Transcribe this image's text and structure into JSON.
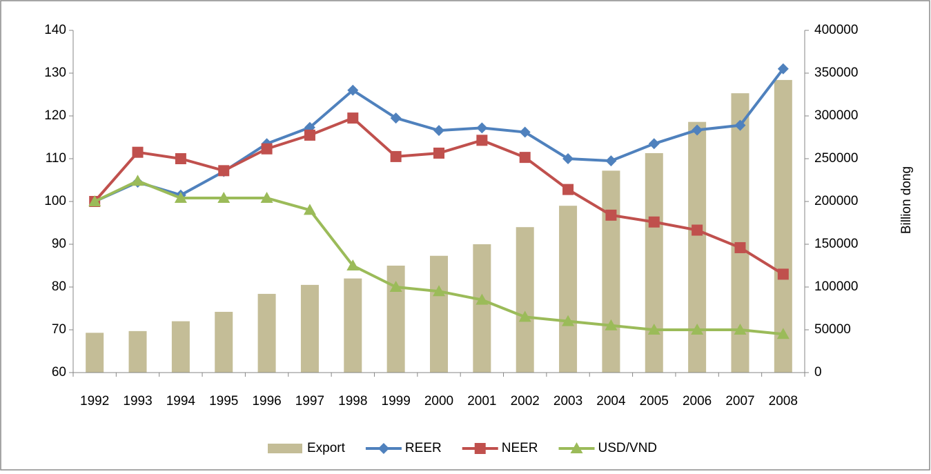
{
  "chart_data": {
    "type": "bar-line",
    "y2_label": "Billion dong",
    "categories": [
      "1992",
      "1993",
      "1994",
      "1995",
      "1996",
      "1997",
      "1998",
      "1999",
      "2000",
      "2001",
      "2002",
      "2003",
      "2004",
      "2005",
      "2006",
      "2007",
      "2008"
    ],
    "series": [
      {
        "name": "Export",
        "type": "bar",
        "axis": "y2",
        "color": "#c4bd97",
        "values": [
          46500,
          48500,
          60000,
          71000,
          92000,
          102500,
          110000,
          125000,
          136500,
          150000,
          170000,
          195000,
          236000,
          256500,
          293000,
          326500,
          342000
        ]
      },
      {
        "name": "REER",
        "type": "line",
        "marker": "diamond",
        "color": "#4f81bd",
        "values": [
          100,
          104.5,
          101.5,
          107,
          113.5,
          117.3,
          126,
          119.5,
          116.6,
          117.2,
          116.2,
          110,
          109.5,
          113.5,
          116.7,
          117.8,
          131
        ]
      },
      {
        "name": "NEER",
        "type": "line",
        "marker": "square",
        "color": "#c0504d",
        "values": [
          100,
          111.5,
          110,
          107.2,
          112.3,
          115.5,
          119.5,
          110.5,
          111.3,
          114.3,
          110.3,
          102.8,
          96.8,
          95.2,
          93.3,
          89.2,
          83
        ]
      },
      {
        "name": "USD/VND",
        "type": "line",
        "marker": "triangle",
        "color": "#9bbb59",
        "values": [
          100,
          104.8,
          100.8,
          100.8,
          100.8,
          98,
          85,
          80,
          79,
          77,
          73,
          72,
          71,
          70,
          70,
          70,
          69
        ]
      }
    ],
    "ylim": [
      60,
      140
    ],
    "yticks": [
      60,
      70,
      80,
      90,
      100,
      110,
      120,
      130,
      140
    ],
    "y2lim": [
      0,
      400000
    ],
    "y2ticks": [
      0,
      50000,
      100000,
      150000,
      200000,
      250000,
      300000,
      350000,
      400000
    ],
    "legend": "bottom"
  }
}
